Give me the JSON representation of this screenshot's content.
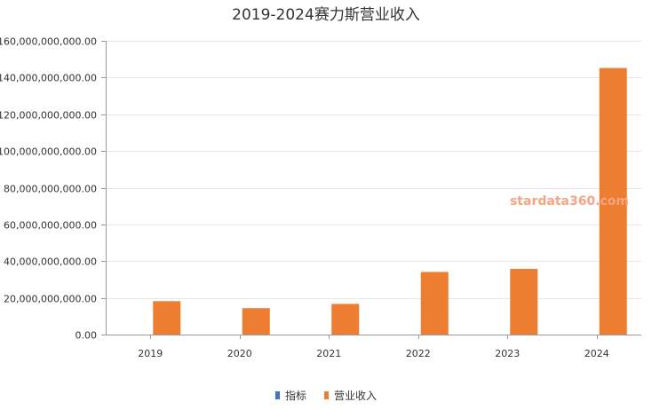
{
  "chart_data": {
    "type": "bar",
    "title": "2019-2024赛力斯营业收入",
    "xlabel": "",
    "ylabel": "",
    "categories": [
      "2019",
      "2020",
      "2021",
      "2022",
      "2023",
      "2024"
    ],
    "series": [
      {
        "name": "指标",
        "color": "#4472c4",
        "values": [
          0,
          0,
          0,
          0,
          0,
          0
        ]
      },
      {
        "name": "营业收入",
        "color": "#ed7d31",
        "values": [
          18200000000,
          14400000000,
          16700000000,
          34100000000,
          35800000000,
          145200000000
        ]
      }
    ],
    "ylim": [
      0,
      160000000000
    ],
    "yticks": [
      0,
      20000000000,
      40000000000,
      60000000000,
      80000000000,
      100000000000,
      120000000000,
      140000000000,
      160000000000
    ],
    "ytick_labels": [
      "0.00",
      "20,000,000,000.00",
      "40,000,000,000.00",
      "60,000,000,000.00",
      "80,000,000,000.00",
      "100,000,000,000.00",
      "120,000,000,000.00",
      "140,000,000,000.00",
      "160,000,000,000.00"
    ],
    "grid": true,
    "legend_position": "bottom"
  },
  "watermark": "stardata360.com"
}
